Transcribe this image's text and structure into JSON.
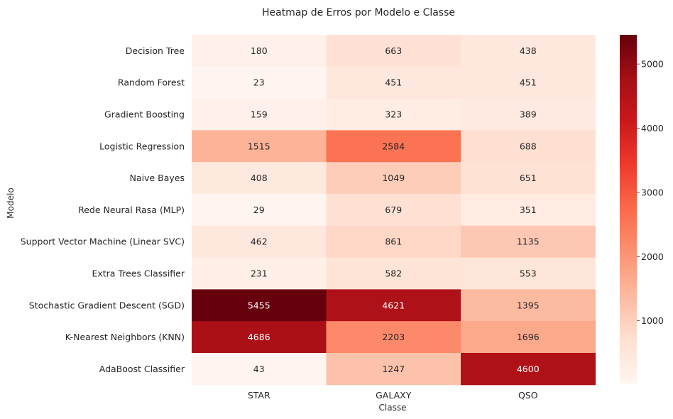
{
  "chart_data": {
    "type": "heatmap",
    "title": "Heatmap de Erros por Modelo e Classe",
    "xlabel": "Classe",
    "ylabel": "Modelo",
    "columns": [
      "STAR",
      "GALAXY",
      "QSO"
    ],
    "rows": [
      "Decision Tree",
      "Random Forest",
      "Gradient Boosting",
      "Logistic Regression",
      "Naive Bayes",
      "Rede Neural Rasa (MLP)",
      "Support Vector Machine (Linear SVC)",
      "Extra Trees Classifier",
      "Stochastic Gradient Descent (SGD)",
      "K-Nearest Neighbors (KNN)",
      "AdaBoost Classifier"
    ],
    "values": [
      [
        180,
        663,
        438
      ],
      [
        23,
        451,
        451
      ],
      [
        159,
        323,
        389
      ],
      [
        1515,
        2584,
        688
      ],
      [
        408,
        1049,
        651
      ],
      [
        29,
        679,
        351
      ],
      [
        462,
        861,
        1135
      ],
      [
        231,
        582,
        553
      ],
      [
        5455,
        4621,
        1395
      ],
      [
        4686,
        2203,
        1696
      ],
      [
        43,
        1247,
        4600
      ]
    ],
    "colormap": "Reds",
    "vmin": 23,
    "vmax": 5455,
    "colorbar_ticks": [
      1000,
      2000,
      3000,
      4000,
      5000
    ]
  }
}
